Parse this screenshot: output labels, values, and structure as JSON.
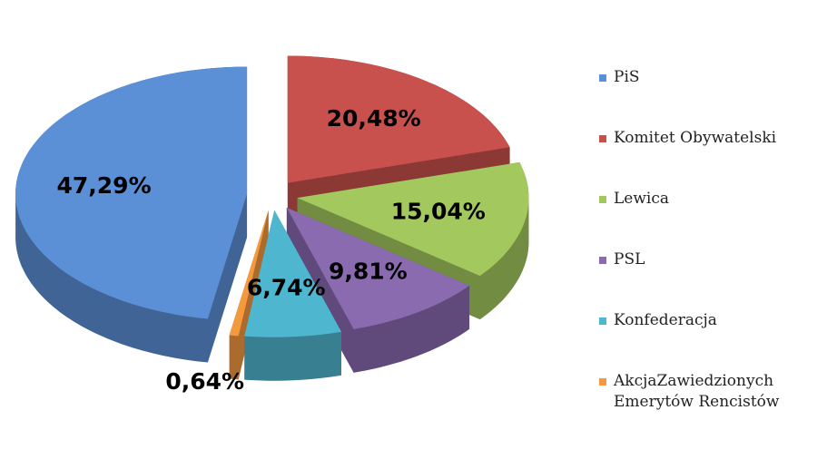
{
  "chart_data": {
    "type": "pie",
    "series": [
      {
        "name": "PiS",
        "color": "#5b8fd6",
        "values": [
          47.29
        ],
        "value_labels": [
          "47,29%"
        ]
      },
      {
        "name": "Komitet Obywatelski",
        "color": "#c9514d",
        "values": [
          20.48
        ],
        "value_labels": [
          "20,48%"
        ]
      },
      {
        "name": "Lewica",
        "color": "#a3c85e",
        "values": [
          15.04
        ],
        "value_labels": [
          "15,04%"
        ]
      },
      {
        "name": "PSL",
        "color": "#8a6bb0",
        "values": [
          9.81
        ],
        "value_labels": [
          "9,81%"
        ]
      },
      {
        "name": "Konfederacja",
        "color": "#4fb6d0",
        "values": [
          6.74
        ],
        "value_labels": [
          "6,74%"
        ]
      },
      {
        "name": "AkcjaZawiedzionych Emerytów Rencistów",
        "color": "#f5993f",
        "values": [
          0.64
        ],
        "value_labels": [
          "0,64%"
        ]
      }
    ],
    "legend": "right"
  }
}
